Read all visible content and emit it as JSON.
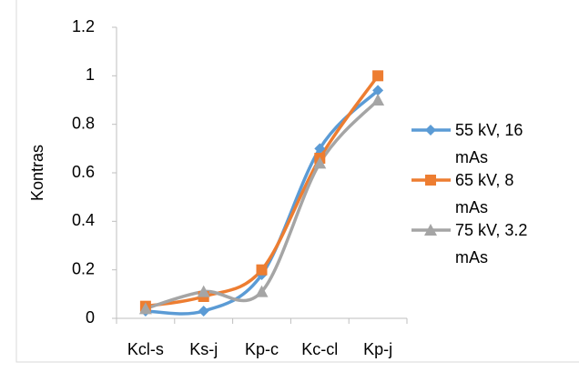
{
  "chart_data": {
    "type": "line",
    "ylabel": "Kontras",
    "categories": [
      "Kcl-s",
      "Ks-j",
      "Kp-c",
      "Kc-cl",
      "Kp-j"
    ],
    "series": [
      {
        "name": "55 kV, 16 mAs",
        "color": "#5b9bd5",
        "marker": "diamond",
        "values": [
          0.03,
          0.03,
          0.18,
          0.7,
          0.94
        ]
      },
      {
        "name": "65 kV, 8 mAs",
        "color": "#ed7d31",
        "marker": "square",
        "values": [
          0.05,
          0.09,
          0.2,
          0.66,
          1.0
        ]
      },
      {
        "name": "75 kV, 3.2 mAs",
        "color": "#a5a5a5",
        "marker": "triangle",
        "values": [
          0.04,
          0.11,
          0.11,
          0.64,
          0.9
        ]
      }
    ],
    "ylim": [
      0,
      1.2
    ],
    "yticks": [
      0,
      0.2,
      0.4,
      0.6,
      0.8,
      1,
      1.2
    ],
    "smooth": true,
    "legend": "right"
  }
}
